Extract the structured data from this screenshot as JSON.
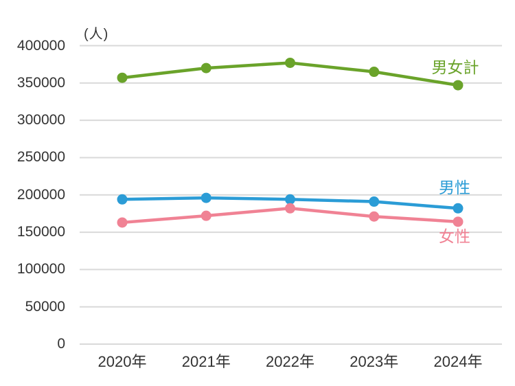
{
  "chart_data": {
    "type": "line",
    "title": "",
    "unit_label": "(人)",
    "xlabel": "",
    "ylabel": "(人)",
    "categories": [
      "2020年",
      "2021年",
      "2022年",
      "2023年",
      "2024年"
    ],
    "series": [
      {
        "key": "total",
        "name": "男女計",
        "color": "#6aa32a",
        "values": [
          357000,
          370000,
          377000,
          365000,
          347000
        ]
      },
      {
        "key": "male",
        "name": "男性",
        "color": "#2b9cd6",
        "values": [
          194000,
          196000,
          194000,
          191000,
          182000
        ]
      },
      {
        "key": "female",
        "name": "女性",
        "color": "#f08294",
        "values": [
          163000,
          172000,
          182000,
          171000,
          164000
        ]
      }
    ],
    "yticks": [
      0,
      50000,
      100000,
      150000,
      200000,
      250000,
      300000,
      350000,
      400000
    ],
    "ytick_labels": [
      "0",
      "50000",
      "100000",
      "150000",
      "200000",
      "250000",
      "300000",
      "350000",
      "400000"
    ],
    "ylim": [
      0,
      400000
    ],
    "grid": true,
    "legend_position": "inline-right-of-last-points"
  },
  "colors": {
    "grid": "#d9d9d9",
    "axis_text": "#333333",
    "background": "#ffffff"
  }
}
